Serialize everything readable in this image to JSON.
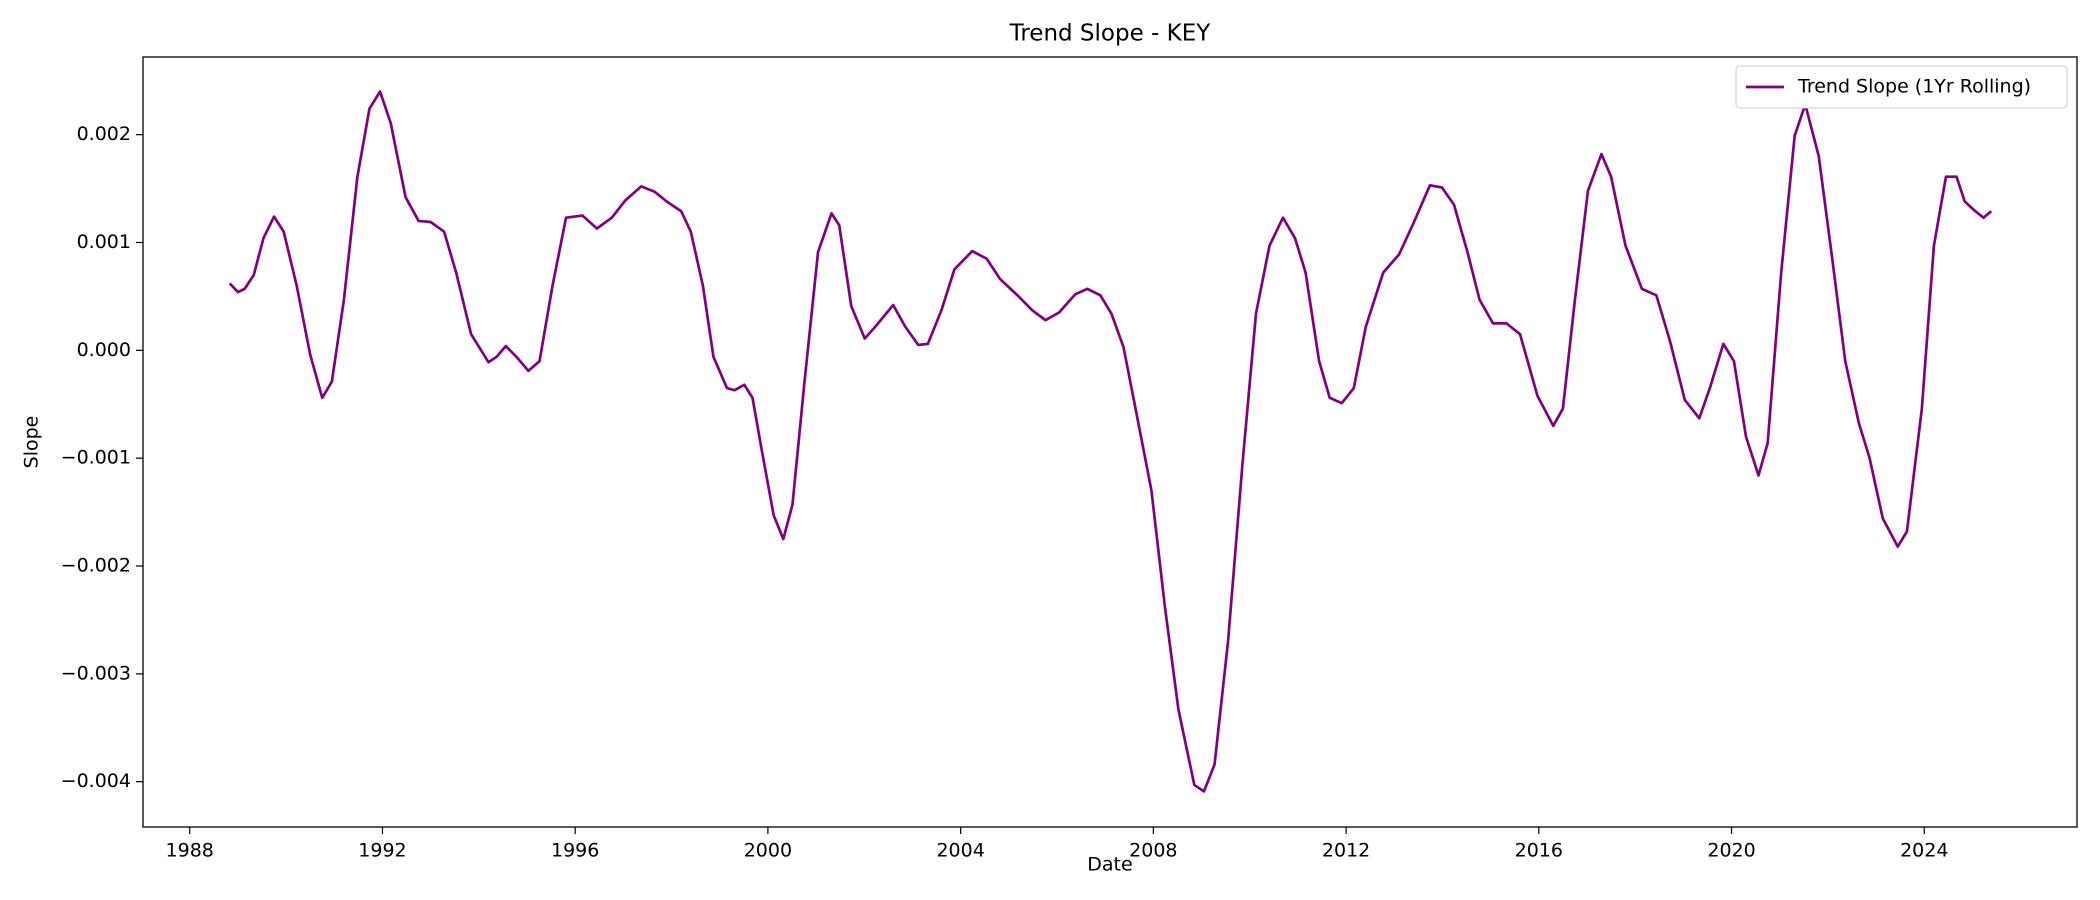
{
  "chart_data": {
    "type": "line",
    "title": "Trend Slope - KEY",
    "x_label": "Date",
    "y_label": "Slope",
    "x": [
      1988.83,
      1989.0,
      1989.14,
      1989.33,
      1989.53,
      1989.75,
      1989.95,
      1990.22,
      1990.5,
      1990.75,
      1990.95,
      1991.2,
      1991.48,
      1991.73,
      1991.95,
      1992.17,
      1992.48,
      1992.75,
      1993.0,
      1993.28,
      1993.53,
      1993.84,
      1994.2,
      1994.37,
      1994.56,
      1994.78,
      1995.03,
      1995.26,
      1995.53,
      1995.81,
      1996.15,
      1996.45,
      1996.76,
      1997.04,
      1997.37,
      1997.65,
      1997.9,
      1998.2,
      1998.4,
      1998.65,
      1998.87,
      1999.15,
      1999.31,
      1999.51,
      1999.68,
      1999.87,
      2000.12,
      2000.32,
      2000.51,
      2000.76,
      2001.04,
      2001.32,
      2001.48,
      2001.73,
      2002.01,
      2002.23,
      2002.6,
      2002.85,
      2003.12,
      2003.32,
      2003.6,
      2003.87,
      2004.24,
      2004.54,
      2004.82,
      2005.18,
      2005.49,
      2005.76,
      2006.04,
      2006.38,
      2006.63,
      2006.9,
      2007.13,
      2007.38,
      2007.63,
      2007.96,
      2008.24,
      2008.52,
      2008.85,
      2009.05,
      2009.27,
      2009.55,
      2009.85,
      2010.13,
      2010.41,
      2010.69,
      2010.94,
      2011.16,
      2011.44,
      2011.66,
      2011.91,
      2012.16,
      2012.41,
      2012.77,
      2013.1,
      2013.38,
      2013.74,
      2013.99,
      2014.24,
      2014.52,
      2014.77,
      2015.05,
      2015.33,
      2015.61,
      2015.97,
      2016.3,
      2016.5,
      2016.75,
      2017.02,
      2017.3,
      2017.5,
      2017.8,
      2018.14,
      2018.44,
      2018.72,
      2019.03,
      2019.33,
      2019.55,
      2019.83,
      2020.05,
      2020.3,
      2020.56,
      2020.75,
      2021.03,
      2021.31,
      2021.53,
      2021.81,
      2022.09,
      2022.36,
      2022.64,
      2022.86,
      2023.14,
      2023.45,
      2023.64,
      2023.95,
      2024.2,
      2024.45,
      2024.67,
      2024.84,
      2025.06,
      2025.23,
      2025.39
    ],
    "series": [
      {
        "name": "Trend Slope (1Yr Rolling)",
        "color": "#800080",
        "values": [
          0.00062,
          0.00054,
          0.00057,
          0.0007,
          0.00104,
          0.00124,
          0.0011,
          0.0006,
          -4e-05,
          -0.00044,
          -0.00029,
          0.00047,
          0.00161,
          0.00224,
          0.0024,
          0.00211,
          0.00142,
          0.0012,
          0.00119,
          0.0011,
          0.00072,
          0.00015,
          -0.00011,
          -6e-05,
          4e-05,
          -6e-05,
          -0.00019,
          -0.0001,
          0.0006,
          0.00123,
          0.00125,
          0.00113,
          0.00123,
          0.00139,
          0.00152,
          0.00147,
          0.00138,
          0.00129,
          0.0011,
          0.0006,
          -6e-05,
          -0.00035,
          -0.00037,
          -0.00032,
          -0.00044,
          -0.00092,
          -0.00153,
          -0.00175,
          -0.00143,
          -0.00029,
          0.00091,
          0.00127,
          0.00116,
          0.00041,
          0.00011,
          0.00022,
          0.00042,
          0.00022,
          5e-05,
          6e-05,
          0.00037,
          0.00075,
          0.00092,
          0.00085,
          0.00066,
          0.00051,
          0.00037,
          0.00028,
          0.00035,
          0.00052,
          0.00057,
          0.00051,
          0.00034,
          3e-05,
          -0.00054,
          -0.0013,
          -0.00238,
          -0.00333,
          -0.00403,
          -0.00409,
          -0.00384,
          -0.0027,
          -0.00105,
          0.00034,
          0.00097,
          0.00123,
          0.00104,
          0.00072,
          -0.0001,
          -0.00044,
          -0.00049,
          -0.00035,
          0.00022,
          0.00072,
          0.00089,
          0.00116,
          0.00153,
          0.00151,
          0.00135,
          0.00091,
          0.00047,
          0.00025,
          0.00025,
          0.00015,
          -0.00042,
          -0.0007,
          -0.00054,
          0.00047,
          0.00148,
          0.00182,
          0.00161,
          0.00097,
          0.00057,
          0.00051,
          9e-05,
          -0.00046,
          -0.00063,
          -0.00035,
          6e-05,
          -0.0001,
          -0.0008,
          -0.00116,
          -0.00086,
          0.00072,
          0.00199,
          0.00228,
          0.0018,
          0.00085,
          -0.0001,
          -0.00067,
          -0.00099,
          -0.00156,
          -0.00182,
          -0.00168,
          -0.00054,
          0.00097,
          0.00161,
          0.00161,
          0.00138,
          0.00129,
          0.00123,
          0.00129
        ]
      }
    ],
    "xlim": [
      1987.03,
      2027.17
    ],
    "xticks": [
      1988,
      1992,
      1996,
      2000,
      2004,
      2008,
      2012,
      2016,
      2020,
      2024
    ],
    "ylim": [
      -0.00442,
      0.00272
    ],
    "yticks": [
      {
        "value": -0.004,
        "label": "−0.004"
      },
      {
        "value": -0.003,
        "label": "−0.003"
      },
      {
        "value": -0.002,
        "label": "−0.002"
      },
      {
        "value": -0.001,
        "label": "−0.001"
      },
      {
        "value": 0,
        "label": "0.000"
      },
      0.001,
      0.002
    ],
    "grid": false,
    "legend": "upper right"
  }
}
